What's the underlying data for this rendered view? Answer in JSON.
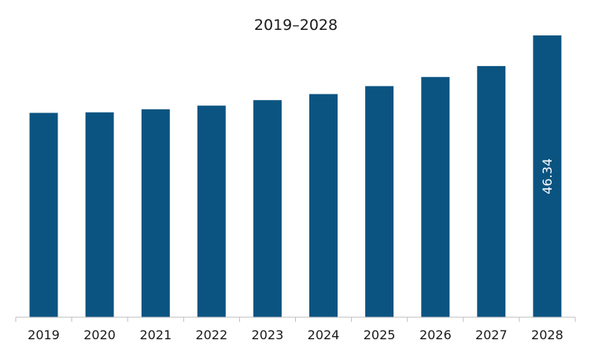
{
  "chart_data": {
    "type": "bar",
    "title": "2019–2028",
    "categories": [
      "2019",
      "2020",
      "2021",
      "2022",
      "2023",
      "2024",
      "2025",
      "2026",
      "2027",
      "2028"
    ],
    "values": [
      33.6,
      33.7,
      34.2,
      34.8,
      35.7,
      36.7,
      38.0,
      39.5,
      41.3,
      46.34
    ],
    "data_labels": [
      "",
      "",
      "",
      "",
      "",
      "",
      "",
      "",
      "",
      "46.34"
    ],
    "ylim": [
      0,
      46.34
    ],
    "grid": false,
    "legend": "none",
    "colors": {
      "bar": "#0b5481",
      "axis": "#bfbfbf",
      "text": "#1a1a1a",
      "label": "#ffffff"
    }
  }
}
